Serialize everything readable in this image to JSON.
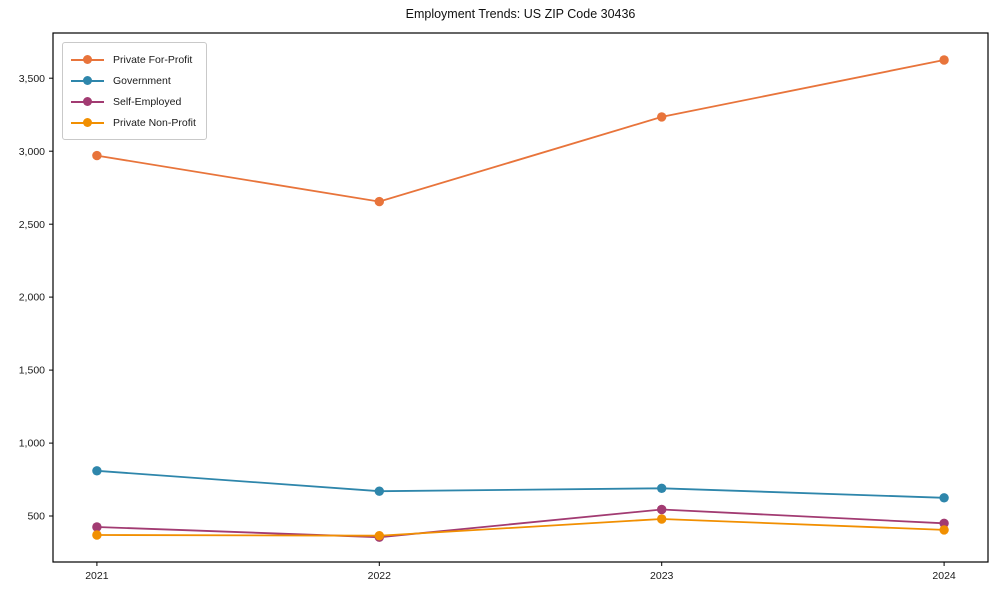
{
  "figure": {
    "background": "#ffffff"
  },
  "chart_data": {
    "type": "line",
    "title": "Employment Trends: US ZIP Code 30436",
    "categories": [
      "2021",
      "2022",
      "2023",
      "2024"
    ],
    "series": [
      {
        "name": "Private For-Profit",
        "color": "#E8743B",
        "values": [
          2970,
          2655,
          3235,
          3625
        ]
      },
      {
        "name": "Government",
        "color": "#2E86AB",
        "values": [
          810,
          670,
          690,
          625
        ]
      },
      {
        "name": "Self-Employed",
        "color": "#A23B72",
        "values": [
          425,
          355,
          545,
          450
        ]
      },
      {
        "name": "Private Non-Profit",
        "color": "#F18F01",
        "values": [
          370,
          365,
          480,
          405
        ]
      }
    ],
    "xlabel": "",
    "ylabel": "",
    "ylim": [
      185,
      3810
    ],
    "yticks": [
      500,
      1000,
      1500,
      2000,
      2500,
      3000,
      3500
    ],
    "grid": false,
    "legend_position": "upper-left",
    "marker": "circle",
    "axis_color": "#000000"
  }
}
